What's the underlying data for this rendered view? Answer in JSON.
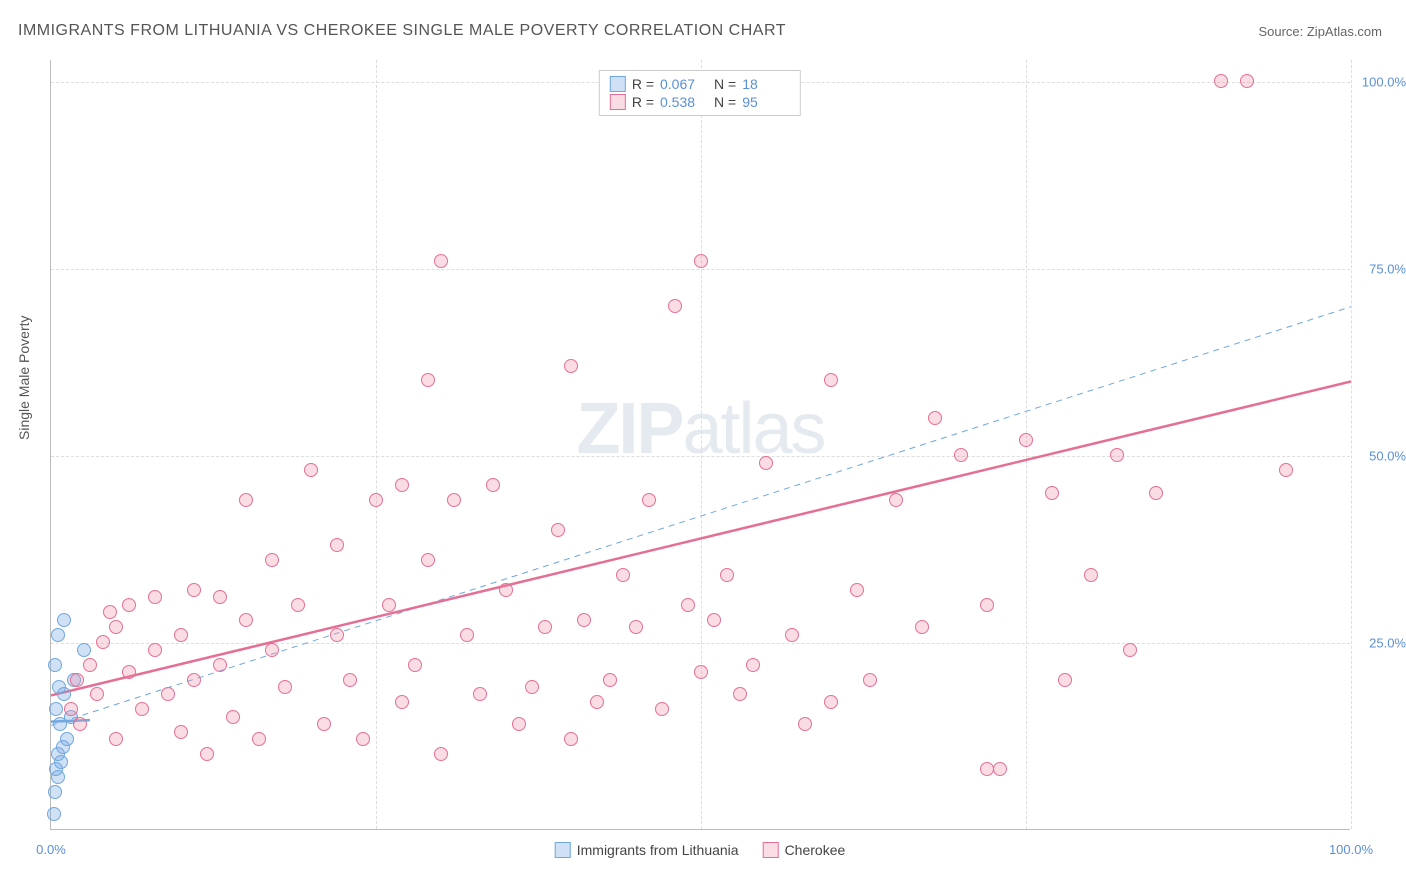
{
  "title": "IMMIGRANTS FROM LITHUANIA VS CHEROKEE SINGLE MALE POVERTY CORRELATION CHART",
  "source_label": "Source: ",
  "source_name": "ZipAtlas.com",
  "y_axis_label": "Single Male Poverty",
  "watermark": "ZIPatlas",
  "chart": {
    "type": "scatter",
    "xlim": [
      0,
      100
    ],
    "ylim": [
      0,
      103
    ],
    "grid_y": [
      25,
      50,
      75,
      100
    ],
    "grid_x": [
      25,
      50,
      75,
      100
    ],
    "y_tick_labels": [
      "25.0%",
      "50.0%",
      "75.0%",
      "100.0%"
    ],
    "x_tick_labels_ends": {
      "left": "0.0%",
      "right": "100.0%"
    },
    "background_color": "#ffffff",
    "grid_color": "#dddddd",
    "axis_color": "#bbbbbb",
    "tick_label_color": "#5b8fd6",
    "point_radius": 7,
    "point_border_width": 1.5,
    "series": [
      {
        "name": "Immigrants from Lithuania",
        "color_fill": "rgba(120,170,230,0.35)",
        "color_border": "#6fa8dc",
        "R": "0.067",
        "N": "18",
        "trend": {
          "x1": 0,
          "y1": 14.5,
          "x2": 3,
          "y2": 14.7,
          "color": "#6fa8dc",
          "width": 2.5,
          "dash": false
        },
        "points": [
          [
            0.2,
            2
          ],
          [
            0.3,
            5
          ],
          [
            0.5,
            7
          ],
          [
            0.4,
            8
          ],
          [
            0.8,
            9
          ],
          [
            0.5,
            10
          ],
          [
            0.9,
            11
          ],
          [
            1.2,
            12
          ],
          [
            0.7,
            14
          ],
          [
            1.5,
            15
          ],
          [
            0.4,
            16
          ],
          [
            1.0,
            18
          ],
          [
            0.6,
            19
          ],
          [
            1.8,
            20
          ],
          [
            0.3,
            22
          ],
          [
            2.5,
            24
          ],
          [
            0.5,
            26
          ],
          [
            1.0,
            28
          ]
        ]
      },
      {
        "name": "Cherokee",
        "color_fill": "rgba(240,140,170,0.3)",
        "color_border": "#e56f94",
        "R": "0.538",
        "N": "95",
        "trend": {
          "x1": 0,
          "y1": 18,
          "x2": 100,
          "y2": 60,
          "color": "#e56f94",
          "width": 2.5,
          "dash": false
        },
        "points": [
          [
            1.5,
            16
          ],
          [
            2,
            20
          ],
          [
            2.2,
            14
          ],
          [
            3,
            22
          ],
          [
            3.5,
            18
          ],
          [
            4,
            25
          ],
          [
            4.5,
            29
          ],
          [
            5,
            12
          ],
          [
            5,
            27
          ],
          [
            6,
            21
          ],
          [
            6,
            30
          ],
          [
            7,
            16
          ],
          [
            8,
            24
          ],
          [
            8,
            31
          ],
          [
            9,
            18
          ],
          [
            10,
            13
          ],
          [
            10,
            26
          ],
          [
            11,
            32
          ],
          [
            11,
            20
          ],
          [
            12,
            10
          ],
          [
            13,
            22
          ],
          [
            13,
            31
          ],
          [
            14,
            15
          ],
          [
            15,
            28
          ],
          [
            15,
            44
          ],
          [
            16,
            12
          ],
          [
            17,
            24
          ],
          [
            17,
            36
          ],
          [
            18,
            19
          ],
          [
            19,
            30
          ],
          [
            20,
            48
          ],
          [
            21,
            14
          ],
          [
            22,
            26
          ],
          [
            22,
            38
          ],
          [
            23,
            20
          ],
          [
            24,
            12
          ],
          [
            25,
            44
          ],
          [
            26,
            30
          ],
          [
            27,
            17
          ],
          [
            27,
            46
          ],
          [
            28,
            22
          ],
          [
            29,
            36
          ],
          [
            29,
            60
          ],
          [
            30,
            10
          ],
          [
            30,
            76
          ],
          [
            31,
            44
          ],
          [
            32,
            26
          ],
          [
            33,
            18
          ],
          [
            34,
            46
          ],
          [
            35,
            32
          ],
          [
            36,
            14
          ],
          [
            37,
            19
          ],
          [
            38,
            27
          ],
          [
            39,
            40
          ],
          [
            40,
            12
          ],
          [
            40,
            62
          ],
          [
            41,
            28
          ],
          [
            42,
            17
          ],
          [
            43,
            20
          ],
          [
            44,
            34
          ],
          [
            45,
            27
          ],
          [
            46,
            44
          ],
          [
            47,
            16
          ],
          [
            48,
            70
          ],
          [
            49,
            30
          ],
          [
            50,
            21
          ],
          [
            50,
            76
          ],
          [
            51,
            28
          ],
          [
            52,
            34
          ],
          [
            53,
            18
          ],
          [
            54,
            22
          ],
          [
            55,
            49
          ],
          [
            57,
            26
          ],
          [
            58,
            14
          ],
          [
            60,
            60
          ],
          [
            62,
            32
          ],
          [
            63,
            20
          ],
          [
            65,
            44
          ],
          [
            67,
            27
          ],
          [
            68,
            55
          ],
          [
            70,
            50
          ],
          [
            72,
            30
          ],
          [
            72,
            8
          ],
          [
            73,
            8
          ],
          [
            75,
            52
          ],
          [
            77,
            45
          ],
          [
            80,
            34
          ],
          [
            82,
            50
          ],
          [
            83,
            24
          ],
          [
            85,
            45
          ],
          [
            90,
            100
          ],
          [
            92,
            100
          ],
          [
            95,
            48
          ],
          [
            78,
            20
          ],
          [
            60,
            17
          ]
        ]
      }
    ],
    "reference_line": {
      "x1": 0,
      "y1": 14,
      "x2": 100,
      "y2": 70,
      "color": "#6fa8dc",
      "width": 1,
      "dash": true
    }
  },
  "stats_legend_labels": {
    "R": "R =",
    "N": "N ="
  },
  "bottom_legend": [
    {
      "swatch_fill": "rgba(120,170,230,0.35)",
      "swatch_border": "#6fa8dc",
      "label": "Immigrants from Lithuania"
    },
    {
      "swatch_fill": "rgba(240,140,170,0.3)",
      "swatch_border": "#e56f94",
      "label": "Cherokee"
    }
  ]
}
